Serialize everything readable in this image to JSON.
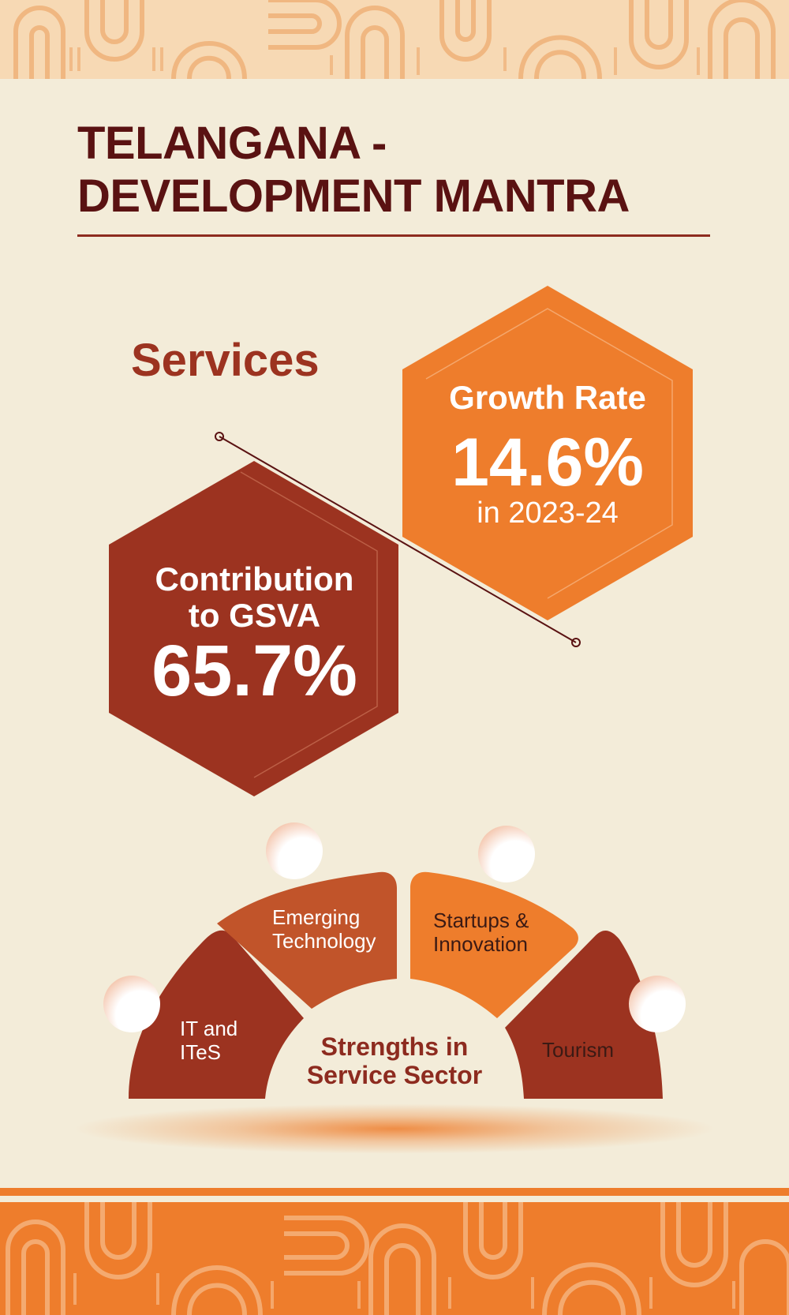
{
  "title": {
    "line1": "TELANGANA -",
    "line2": "DEVELOPMENT MANTRA"
  },
  "section": {
    "heading": "Services"
  },
  "growth": {
    "label": "Growth Rate",
    "value": "14.6%",
    "period": "in 2023-24"
  },
  "contribution": {
    "label_line1": "Contribution",
    "label_line2": "to GSVA",
    "value": "65.7%"
  },
  "strengths": {
    "title_line1": "Strengths in",
    "title_line2": "Service Sector",
    "items": [
      {
        "line1": "IT and",
        "line2": "ITeS"
      },
      {
        "line1": "Emerging",
        "line2": "Technology"
      },
      {
        "line1": "Startups &",
        "line2": "Innovation"
      },
      {
        "line1": "Tourism",
        "line2": ""
      }
    ]
  },
  "colors": {
    "background": "#f3ecd9",
    "title": "#5a1212",
    "orange": "#ee7d2c",
    "rust": "#9c3320",
    "brown_orange": "#c1542a"
  }
}
